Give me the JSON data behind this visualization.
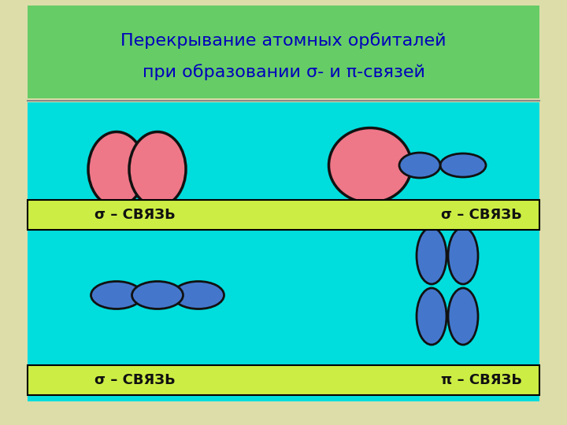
{
  "title_line1": "Перекрывание атомных орбиталей",
  "title_line2": "при образовании σ- и π-связей",
  "title_bg": "#66cc66",
  "main_bg": "#00dddd",
  "outer_bg": "#ddddaa",
  "label_bg": "#ccee44",
  "label_text_color": "#111111",
  "title_text_color": "#0000bb",
  "pink_color": "#ee7788",
  "blue_color": "#4477cc",
  "outline_color": "#111111",
  "labels": {
    "top_left": "σ – СВЯЗЬ",
    "top_right": "σ – СВЯЗЬ",
    "bottom_left": "σ – СВЯЗЬ",
    "bottom_right": "π – СВЯЗЬ"
  },
  "fig_width": 7.2,
  "fig_height": 5.4,
  "dpi": 100
}
